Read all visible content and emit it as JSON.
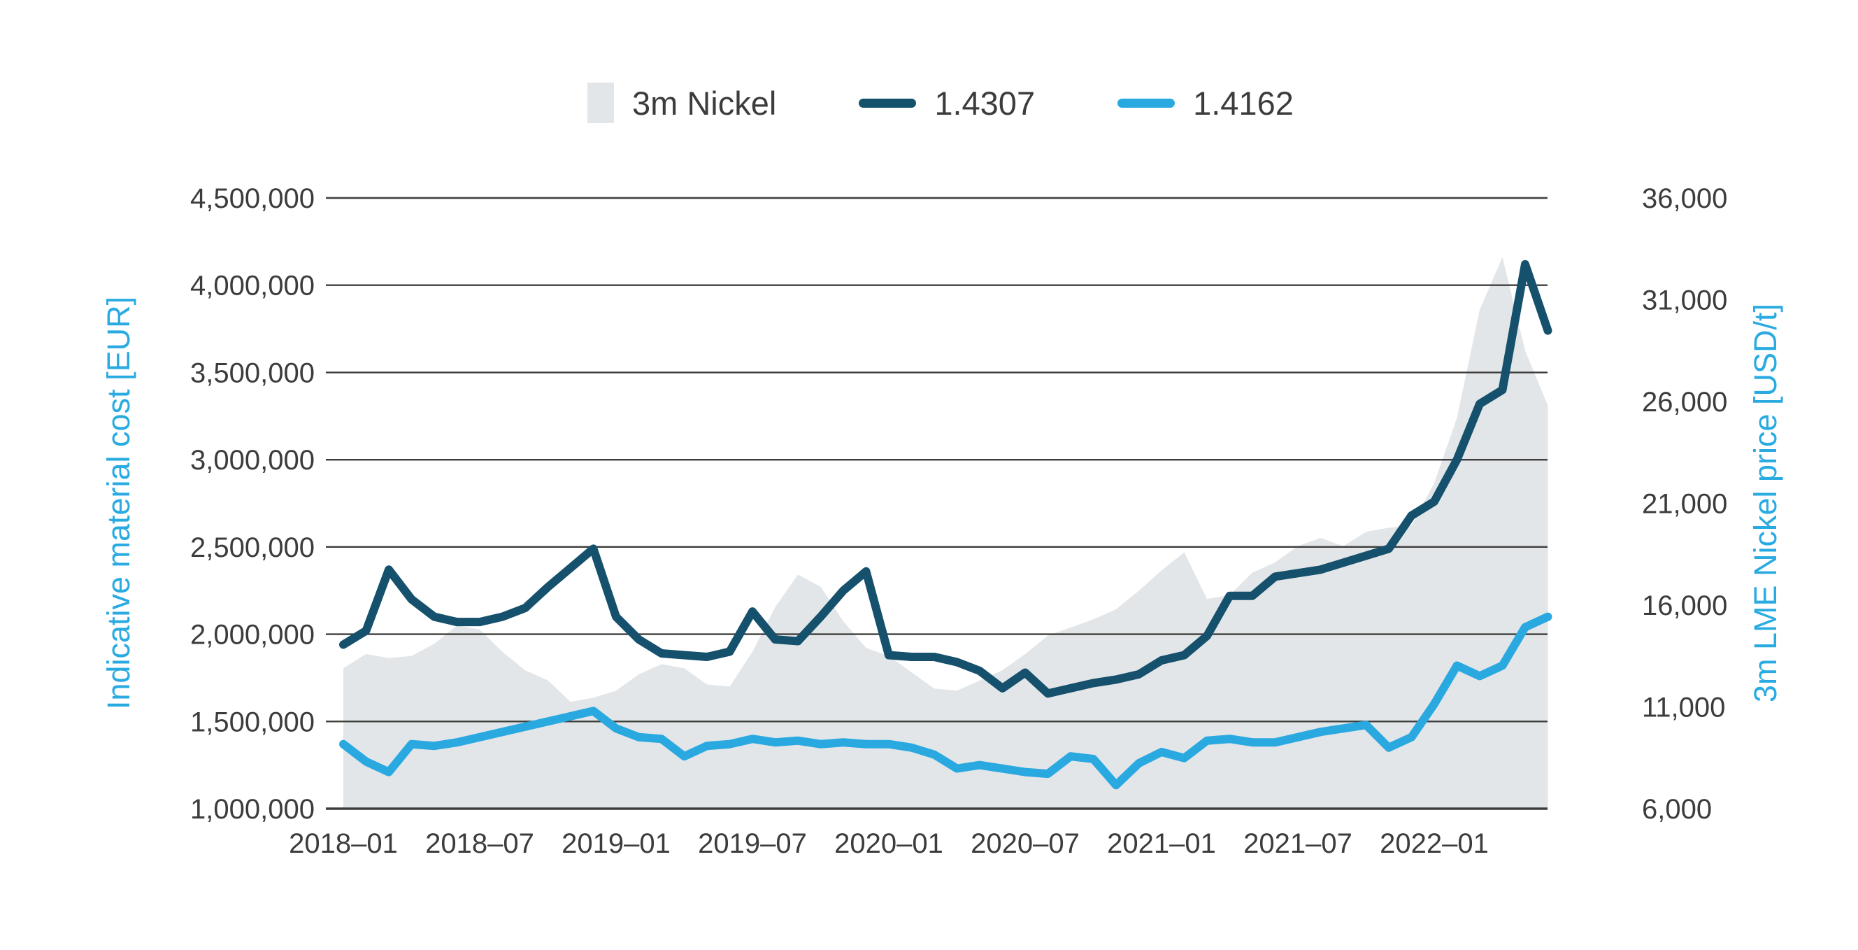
{
  "legend": {
    "items": [
      {
        "label": "3m Nickel",
        "type": "area",
        "color": "#E2E6E9"
      },
      {
        "label": "1.4307",
        "type": "line",
        "color": "#15506C"
      },
      {
        "label": "1.4162",
        "type": "line",
        "color": "#2AA9E1"
      }
    ]
  },
  "left_axis": {
    "title": "Indicative material cost [EUR]",
    "title_color": "#29ABE2",
    "tick_labels": [
      "4,500,000",
      "4,000,000",
      "3,500,000",
      "3,000,000",
      "2,500,000",
      "2,000,000",
      "1,500,000",
      "1,000,000"
    ],
    "min": 1000000,
    "max": 4500000
  },
  "right_axis": {
    "title": "3m LME Nickel price [USD/t]",
    "title_color": "#29ABE2",
    "tick_labels": [
      "36,000",
      "31,000",
      "26,000",
      "21,000",
      "16,000",
      "11,000",
      "6,000"
    ],
    "min": 6000,
    "max": 36000
  },
  "x_axis": {
    "tick_labels": [
      "2018–01",
      "2018–07",
      "2019–01",
      "2019–07",
      "2020–01",
      "2020–07",
      "2021–01",
      "2021–07",
      "2022–01"
    ],
    "tick_every": 6
  },
  "text_color": "#3C3C3B",
  "grid_color": "#3D3D3B",
  "chart_data": {
    "type": "area+line",
    "title": "",
    "grid": "horizontal",
    "legend_position": "top-center",
    "left_ylim": [
      1000000,
      4500000
    ],
    "right_ylim": [
      6000,
      36000
    ],
    "x": [
      "2018-01",
      "2018-02",
      "2018-03",
      "2018-04",
      "2018-05",
      "2018-06",
      "2018-07",
      "2018-08",
      "2018-09",
      "2018-10",
      "2018-11",
      "2018-12",
      "2019-01",
      "2019-02",
      "2019-03",
      "2019-04",
      "2019-05",
      "2019-06",
      "2019-07",
      "2019-08",
      "2019-09",
      "2019-10",
      "2019-11",
      "2019-12",
      "2020-01",
      "2020-02",
      "2020-03",
      "2020-04",
      "2020-05",
      "2020-06",
      "2020-07",
      "2020-08",
      "2020-09",
      "2020-10",
      "2020-11",
      "2020-12",
      "2021-01",
      "2021-02",
      "2021-03",
      "2021-04",
      "2021-05",
      "2021-06",
      "2021-07",
      "2021-08",
      "2021-09",
      "2021-10",
      "2021-11",
      "2021-12",
      "2022-01",
      "2022-02",
      "2022-03",
      "2022-04",
      "2022-05",
      "2022-06"
    ],
    "series": [
      {
        "name": "3m Nickel",
        "type": "area",
        "axis": "right",
        "unit": "USD/t",
        "color": "#E2E6E9",
        "values": [
          12900,
          13600,
          13400,
          13500,
          14100,
          15000,
          14800,
          13700,
          12800,
          12300,
          11250,
          11450,
          11800,
          12600,
          13100,
          12900,
          12100,
          12000,
          13700,
          15900,
          17500,
          16900,
          15200,
          13900,
          13500,
          12700,
          11900,
          11800,
          12300,
          12800,
          13600,
          14500,
          14900,
          15300,
          15800,
          16700,
          17700,
          18600,
          16300,
          16500,
          17600,
          18100,
          18900,
          19300,
          18900,
          19600,
          19800,
          19900,
          22000,
          25200,
          30500,
          33100,
          28500,
          25800
        ]
      },
      {
        "name": "1.4307",
        "type": "line",
        "axis": "left",
        "unit": "EUR",
        "color": "#15506C",
        "values": [
          1940000,
          2020000,
          2370000,
          2200000,
          2100000,
          2070000,
          2070000,
          2100000,
          2150000,
          2270000,
          2380000,
          2490000,
          2100000,
          1970000,
          1890000,
          1880000,
          1870000,
          1900000,
          2130000,
          1970000,
          1960000,
          2100000,
          2250000,
          2360000,
          1880000,
          1870000,
          1870000,
          1840000,
          1790000,
          1690000,
          1780000,
          1660000,
          1690000,
          1720000,
          1740000,
          1770000,
          1850000,
          1880000,
          1990000,
          2220000,
          2220000,
          2330000,
          2350000,
          2370000,
          2410000,
          2450000,
          2490000,
          2680000,
          2760000,
          3000000,
          3320000,
          3400000,
          4120000,
          3740000
        ]
      },
      {
        "name": "1.4162",
        "type": "line",
        "axis": "left",
        "unit": "EUR",
        "color": "#2AA9E1",
        "values": [
          1370000,
          1270000,
          1210000,
          1370000,
          1360000,
          1380000,
          1410000,
          1440000,
          1470000,
          1500000,
          1530000,
          1560000,
          1460000,
          1410000,
          1400000,
          1300000,
          1360000,
          1370000,
          1400000,
          1380000,
          1390000,
          1370000,
          1380000,
          1370000,
          1370000,
          1350000,
          1310000,
          1230000,
          1250000,
          1230000,
          1210000,
          1200000,
          1300000,
          1285000,
          1135000,
          1260000,
          1325000,
          1290000,
          1390000,
          1400000,
          1380000,
          1380000,
          1410000,
          1440000,
          1460000,
          1480000,
          1350000,
          1410000,
          1600000,
          1820000,
          1760000,
          1820000,
          2040000,
          2100000
        ]
      }
    ]
  }
}
